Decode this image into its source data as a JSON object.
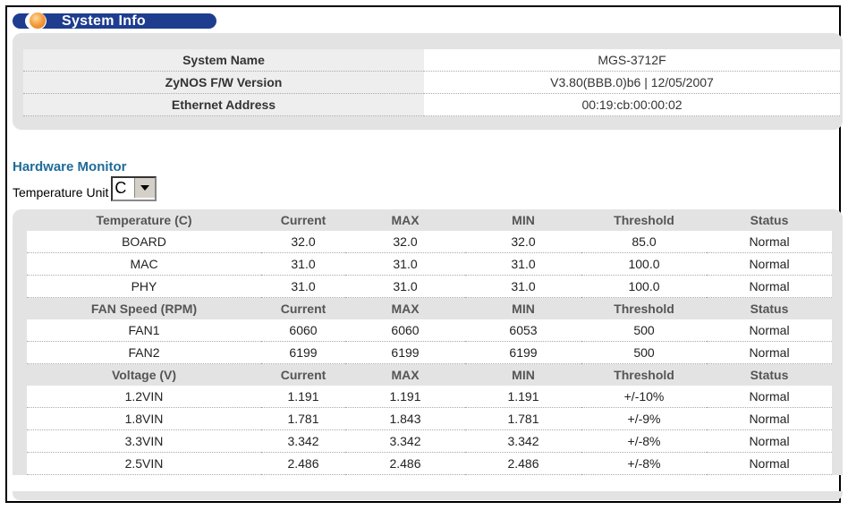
{
  "title": "System Info",
  "system_info": [
    {
      "label": "System Name",
      "value": "MGS-3712F"
    },
    {
      "label": "ZyNOS F/W Version",
      "value": "V3.80(BBB.0)b6 | 12/05/2007"
    },
    {
      "label": "Ethernet Address",
      "value": "00:19:cb:00:00:02"
    }
  ],
  "hardware_monitor": {
    "title": "Hardware Monitor",
    "temperature_unit_label": "Temperature Unit",
    "temperature_unit_value": "C",
    "temperature": {
      "headers": [
        "Temperature (C)",
        "Current",
        "MAX",
        "MIN",
        "Threshold",
        "Status"
      ],
      "rows": [
        [
          "BOARD",
          "32.0",
          "32.0",
          "32.0",
          "85.0",
          "Normal"
        ],
        [
          "MAC",
          "31.0",
          "31.0",
          "31.0",
          "100.0",
          "Normal"
        ],
        [
          "PHY",
          "31.0",
          "31.0",
          "31.0",
          "100.0",
          "Normal"
        ]
      ]
    },
    "fan": {
      "headers": [
        "FAN Speed (RPM)",
        "Current",
        "MAX",
        "MIN",
        "Threshold",
        "Status"
      ],
      "rows": [
        [
          "FAN1",
          "6060",
          "6060",
          "6053",
          "500",
          "Normal"
        ],
        [
          "FAN2",
          "6199",
          "6199",
          "6199",
          "500",
          "Normal"
        ]
      ]
    },
    "voltage": {
      "headers": [
        "Voltage (V)",
        "Current",
        "MAX",
        "MIN",
        "Threshold",
        "Status"
      ],
      "rows": [
        [
          "1.2VIN",
          "1.191",
          "1.191",
          "1.191",
          "+/-10%",
          "Normal"
        ],
        [
          "1.8VIN",
          "1.781",
          "1.843",
          "1.781",
          "+/-9%",
          "Normal"
        ],
        [
          "3.3VIN",
          "3.342",
          "3.342",
          "3.342",
          "+/-8%",
          "Normal"
        ],
        [
          "2.5VIN",
          "2.486",
          "2.486",
          "2.486",
          "+/-8%",
          "Normal"
        ]
      ]
    }
  }
}
